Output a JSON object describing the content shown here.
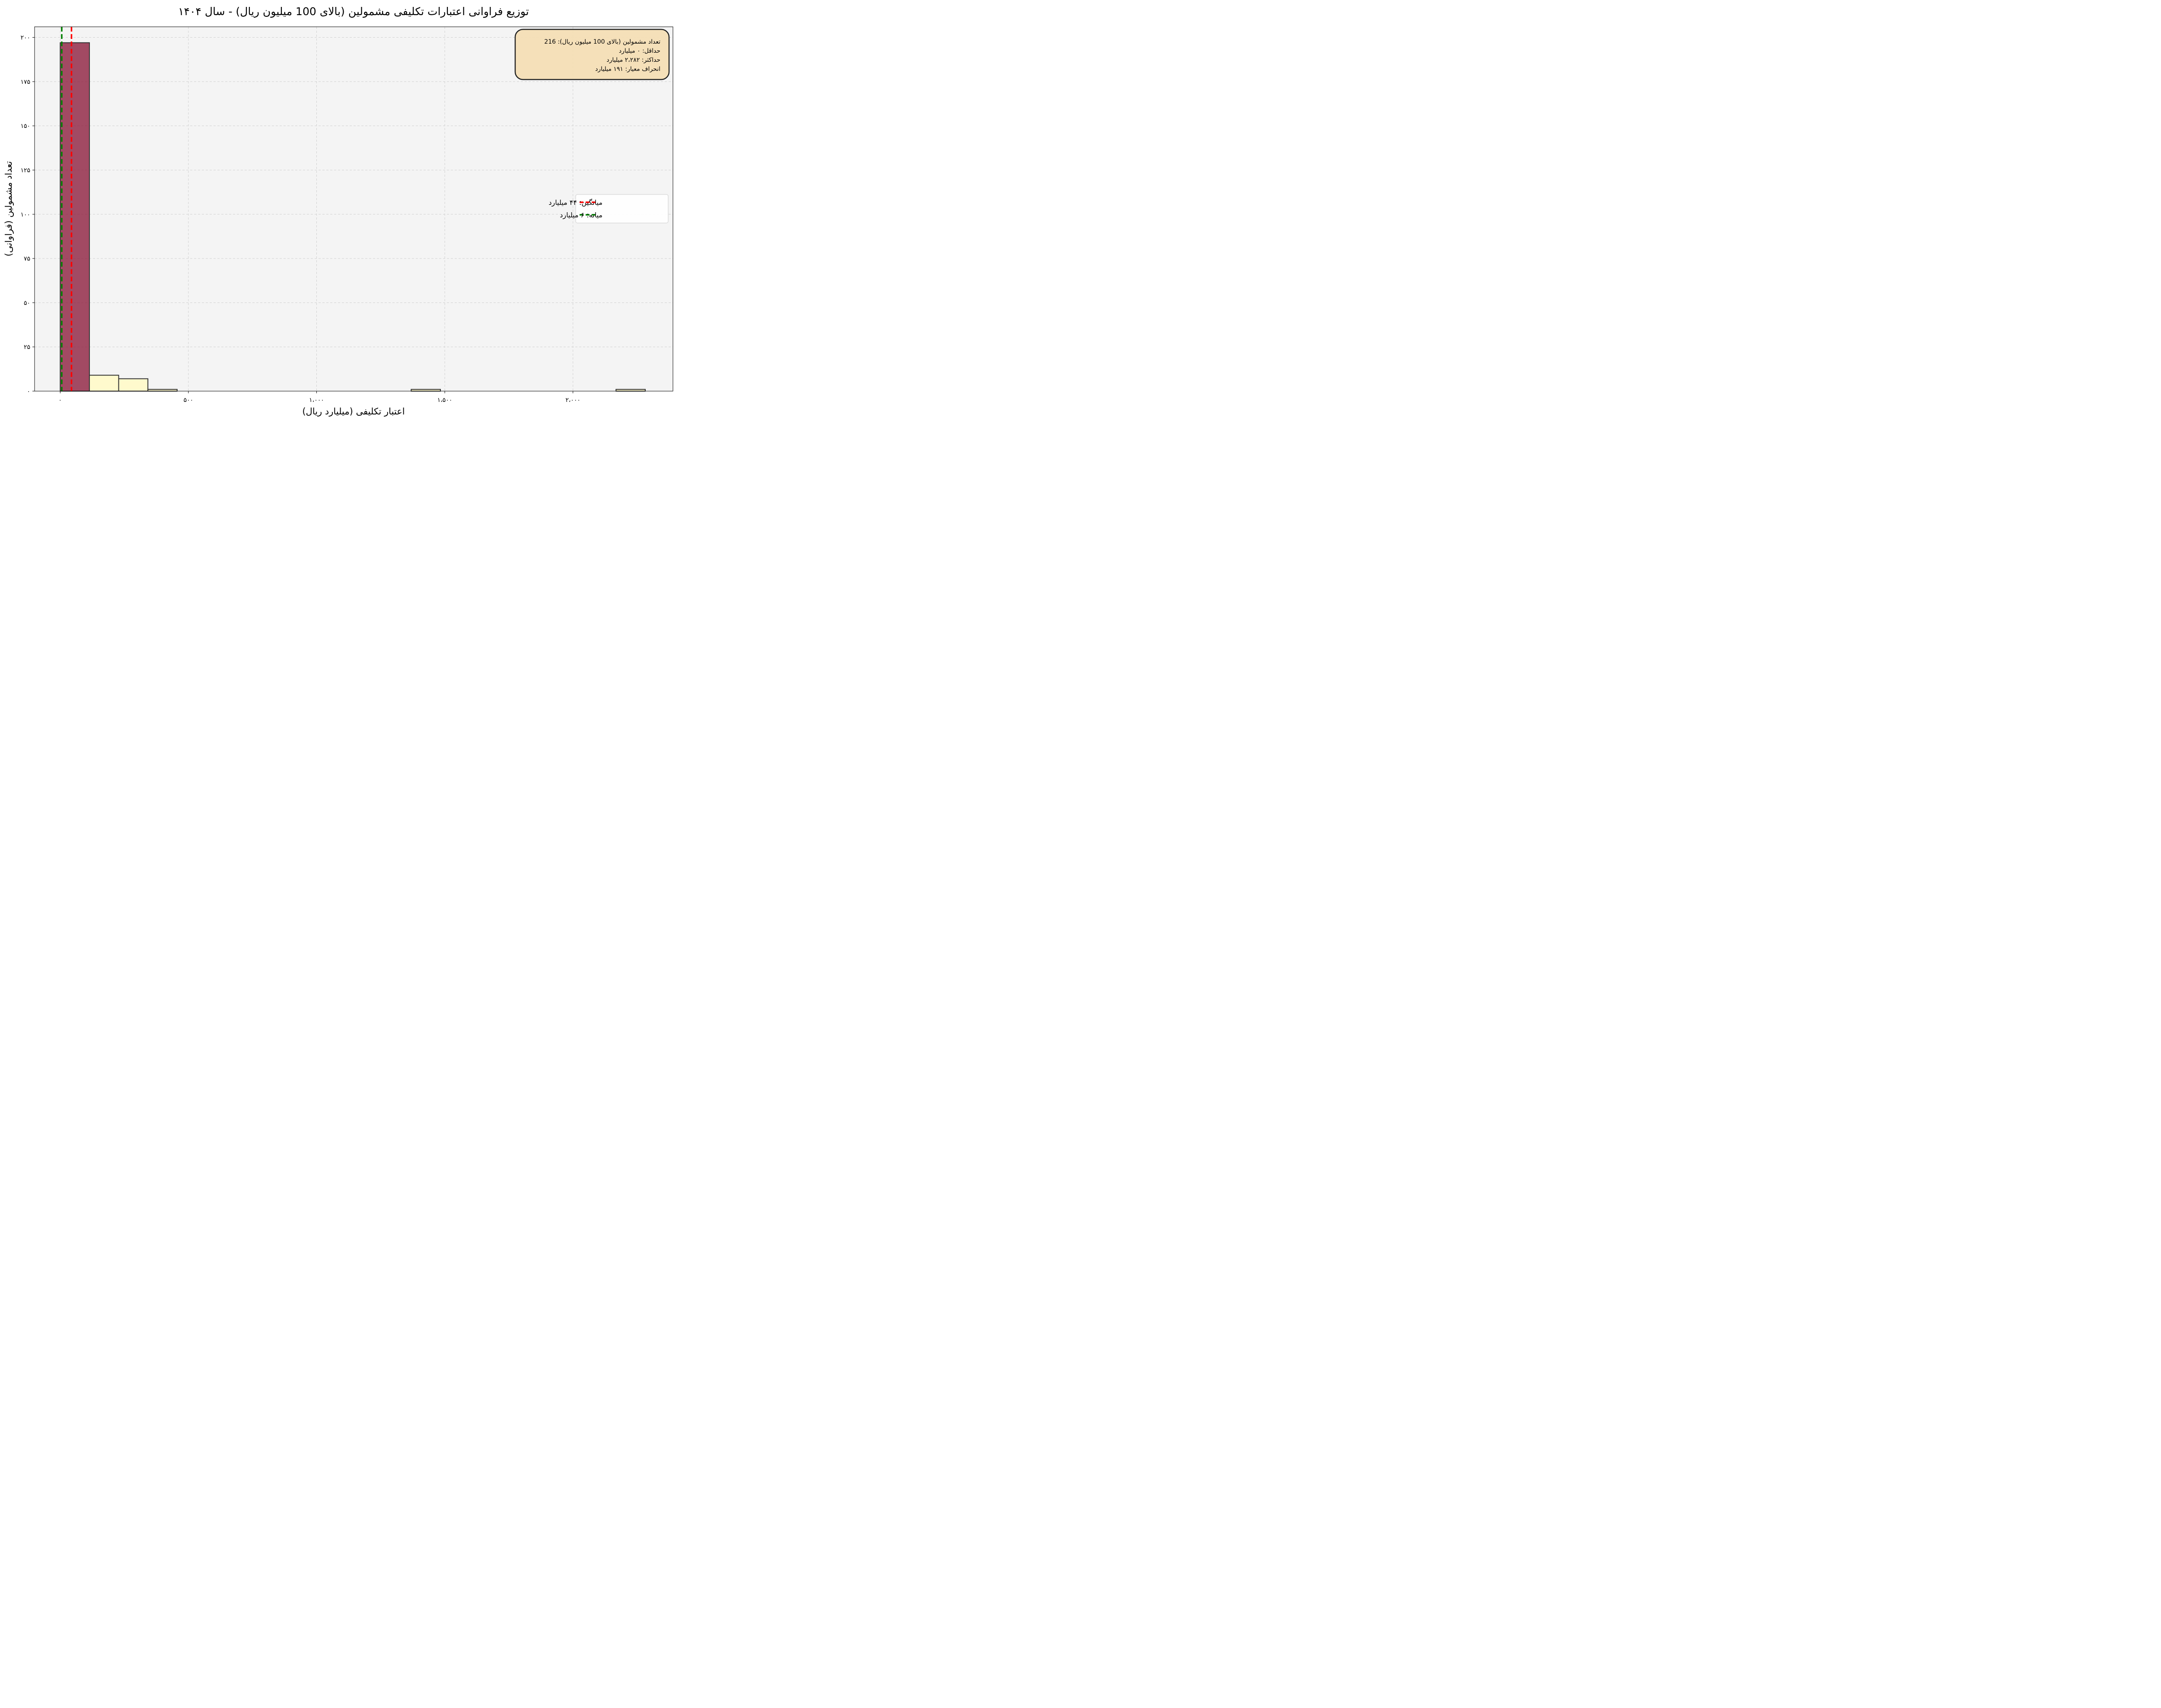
{
  "chart_data": {
    "type": "bar",
    "title": "توزیع فراوانی اعتبارات تکلیفی مشمولین (بالای 100 میلیون ریال) - سال ۱۴۰۴",
    "xlabel": "اعتبار تکلیفی (میلیارد ریال)",
    "ylabel": "تعداد مشمولین (فراوانی)",
    "xlim": [
      -100,
      2390
    ],
    "ylim": [
      0,
      206
    ],
    "grid": true,
    "xticks": [
      {
        "value": 0,
        "label": "۰"
      },
      {
        "value": 500,
        "label": "۵۰۰"
      },
      {
        "value": 1000,
        "label": "۱،۰۰۰"
      },
      {
        "value": 1500,
        "label": "۱،۵۰۰"
      },
      {
        "value": 2000,
        "label": "۲،۰۰۰"
      }
    ],
    "yticks": [
      {
        "value": 0,
        "label": "۰"
      },
      {
        "value": 25,
        "label": "۲۵"
      },
      {
        "value": 50,
        "label": "۵۰"
      },
      {
        "value": 75,
        "label": "۷۵"
      },
      {
        "value": 100,
        "label": "۱۰۰"
      },
      {
        "value": 125,
        "label": "۱۲۵"
      },
      {
        "value": 150,
        "label": "۱۵۰"
      },
      {
        "value": 175,
        "label": "۱۷۵"
      },
      {
        "value": 200,
        "label": "۲۰۰"
      }
    ],
    "bins": [
      {
        "x0": 0,
        "x1": 114,
        "count": 197,
        "highlight": true
      },
      {
        "x0": 114,
        "x1": 228,
        "count": 9
      },
      {
        "x0": 228,
        "x1": 342,
        "count": 7
      },
      {
        "x0": 342,
        "x1": 456,
        "count": 1
      },
      {
        "x0": 1369,
        "x1": 1483,
        "count": 1
      },
      {
        "x0": 2168,
        "x1": 2282,
        "count": 1
      }
    ],
    "mean_line": {
      "value": 44,
      "label": "میانگین: ۴۴ میلیارد",
      "color": "#ff0000"
    },
    "median_line": {
      "value": 6,
      "label": "میانه: ۶ میلیارد",
      "color": "#008000"
    },
    "stats_box": [
      "تعداد مشمولین (بالای 100 میلیون ریال): 216",
      "حداقل: ۰ میلیارد",
      "حداکثر: ۲،۲۸۲ میلیارد",
      "انحراف معیار: ۱۹۱ میلیارد"
    ],
    "legend_position": "center-right",
    "colors": {
      "highlight_bar": "#8b1a3a",
      "bar": "#fffacd",
      "background": "#f4f4f4",
      "stats_box": "#f5deb3"
    }
  }
}
